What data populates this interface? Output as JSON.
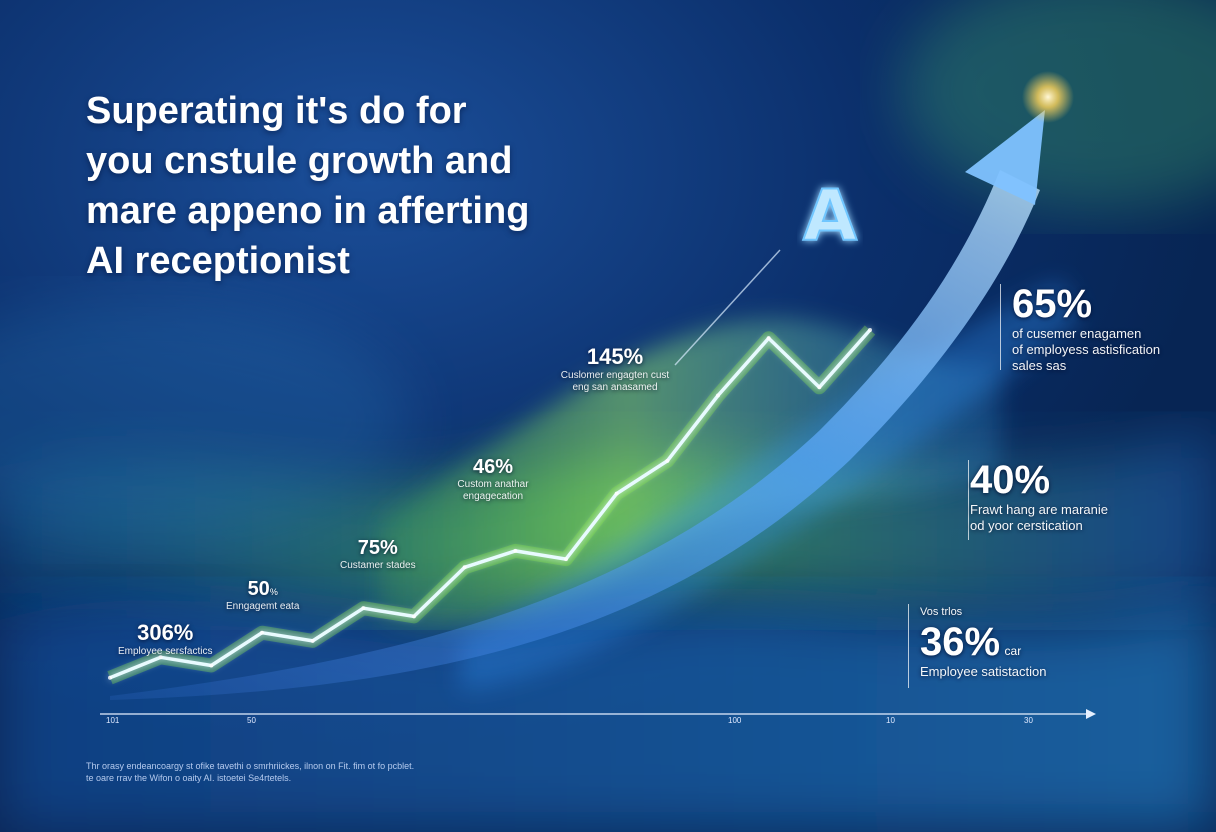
{
  "headline": [
    "Superating it's do for",
    "you cnstule growth and",
    "mare appeno in afferting",
    "AI receptionist"
  ],
  "logo_letter": "A",
  "footnote": [
    "Thr orasy endeancoargy st ofike tavethi o smrhriickes, ilnon on Fit. fim ot fo pcblet.",
    "te oare rrav the Wifon o oaity AI. istoetei Se4rtetels."
  ],
  "chart_data": {
    "type": "line",
    "title": "",
    "xlabel": "",
    "ylabel": "",
    "x_ticks": [
      "101",
      "50",
      "100",
      "10",
      "30"
    ],
    "series_values": [
      3,
      8,
      6,
      14,
      12,
      20,
      18,
      30,
      34,
      32,
      48,
      56,
      72,
      86,
      74,
      88
    ],
    "point_labels": [
      {
        "value": "306%",
        "sub": "Employee sersfactics"
      },
      {
        "value": "50",
        "unit": "%",
        "sub": "Enngagemt eata"
      },
      {
        "value": "75%",
        "sub": "Custamer stades"
      },
      {
        "value": "46%",
        "sub": "Custom anathar engagecation"
      },
      {
        "value": "145%",
        "sub": "Cuslomer engagten cust eng san anasamed"
      }
    ],
    "side_labels": [
      {
        "value": "65%",
        "lines": [
          "of cusemer enagamen",
          "of employess astisfication",
          "sales sas"
        ]
      },
      {
        "value": "40%",
        "lines": [
          "Frawt hang are maranie",
          "od yoor cerstication"
        ]
      },
      {
        "value": "36%",
        "prefix": "Vos trlos",
        "suffix": "car",
        "lines": [
          "Employee satistaction"
        ]
      }
    ],
    "colors": {
      "line": "#e8fbff",
      "glow_green": "#7de33a",
      "arrow": "#5aa9ff"
    }
  }
}
